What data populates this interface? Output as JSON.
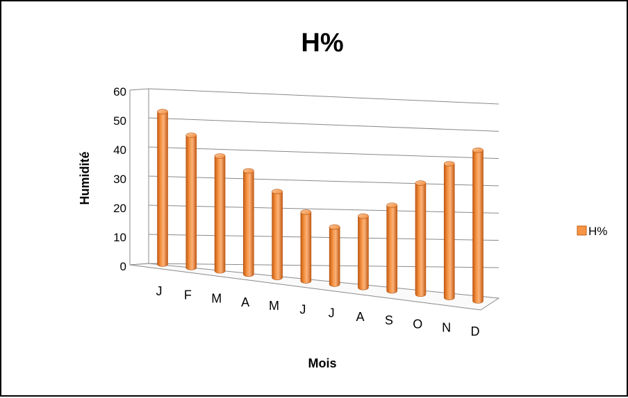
{
  "chart_data": {
    "type": "bar",
    "title": "H%",
    "xlabel": "Mois",
    "ylabel": "Humidité",
    "categories": [
      "J",
      "F",
      "M",
      "A",
      "M",
      "J",
      "J",
      "A",
      "S",
      "O",
      "N",
      "D"
    ],
    "series": [
      {
        "name": "H%",
        "values": [
          53,
          46,
          40,
          36,
          30,
          24,
          20,
          25,
          30,
          39,
          47,
          53
        ]
      }
    ],
    "yticks": [
      "0",
      "10",
      "20",
      "30",
      "40",
      "50",
      "60"
    ],
    "ylim": [
      0,
      60
    ],
    "grid": true,
    "legend_position": "right",
    "series_color": "#F79646",
    "chart_style": "3D cylinder columns"
  }
}
